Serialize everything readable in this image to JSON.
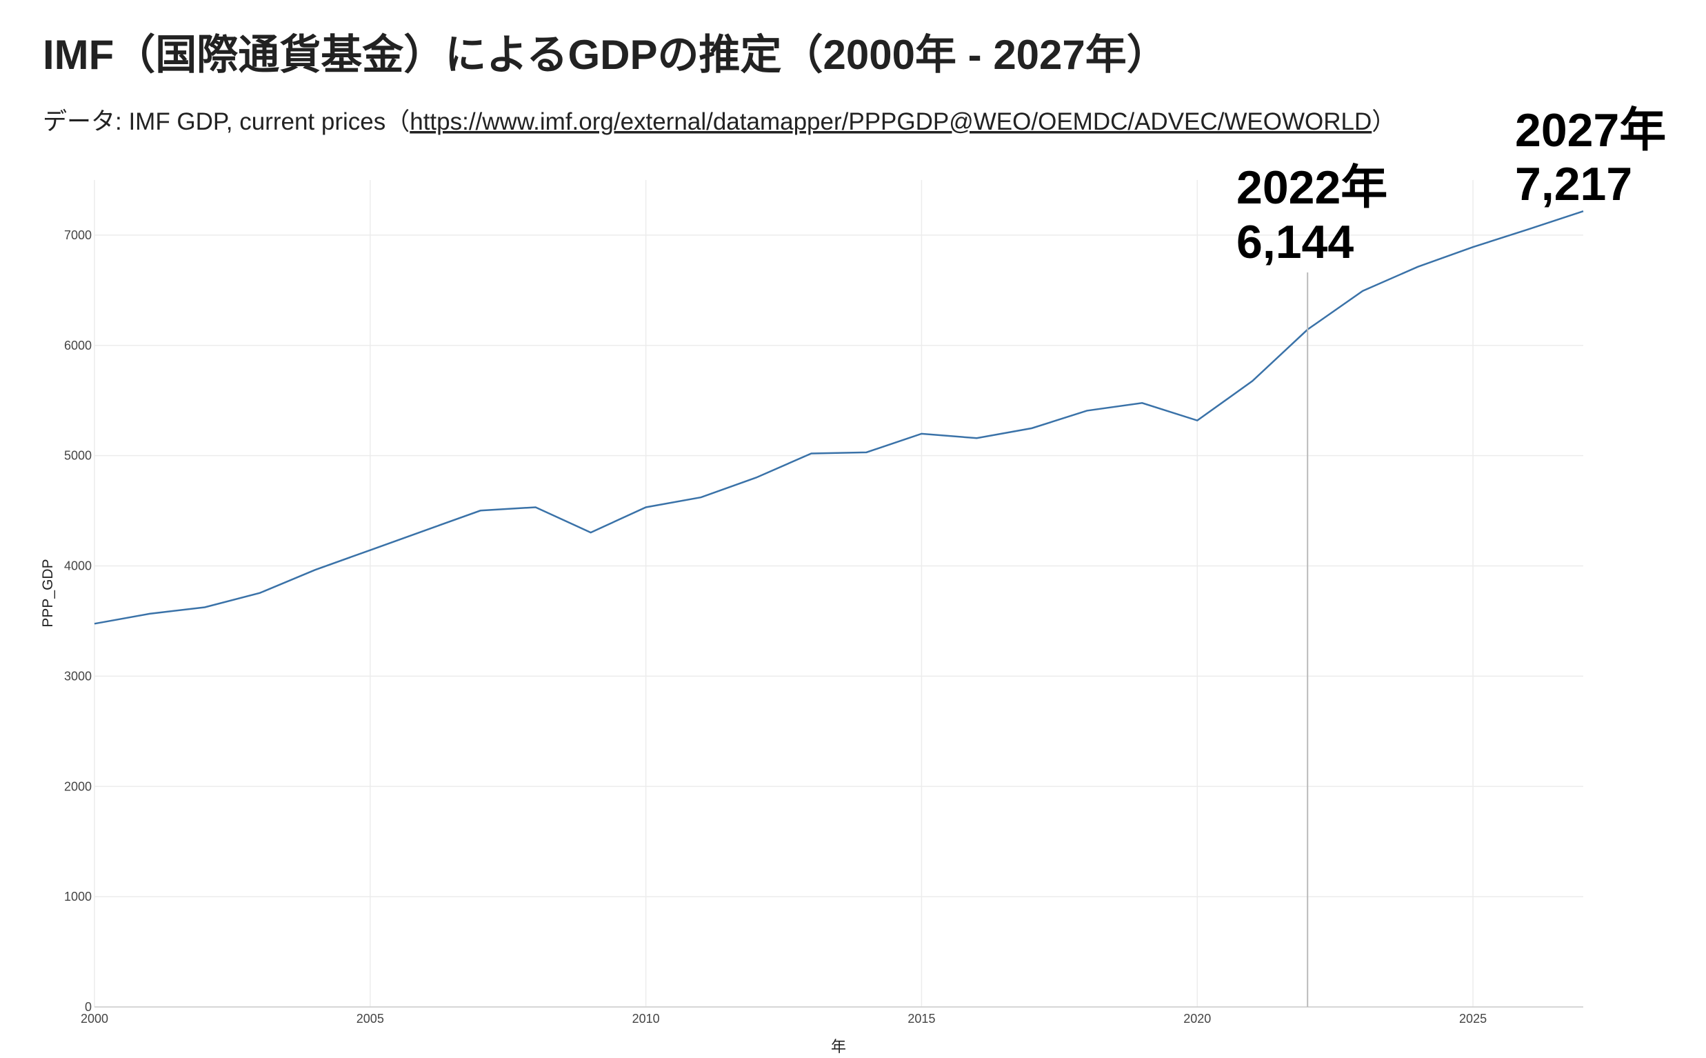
{
  "chart_data": {
    "type": "line",
    "title": "IMF（国際通貨基金）によるGDPの推定（2000年 - 2027年）",
    "subtitle": {
      "text": "データ: IMF GDP, current prices（",
      "link": "https://www.imf.org/external/datamapper/PPPGDP@WEO/OEMDC/ADVEC/WEOWORLD",
      "end": "）"
    },
    "x_label": "年",
    "y_label": "PPP_GDP",
    "x": [
      2000,
      2001,
      2002,
      2003,
      2004,
      2005,
      2006,
      2007,
      2008,
      2009,
      2010,
      2011,
      2012,
      2013,
      2014,
      2015,
      2016,
      2017,
      2018,
      2019,
      2020,
      2021,
      2022,
      2023,
      2024,
      2025,
      2026,
      2027
    ],
    "series": [
      {
        "color": "#3a72a8",
        "values": [
          3476,
          3566,
          3625,
          3755,
          3964,
          4143,
          4323,
          4502,
          4532,
          4303,
          4532,
          4622,
          4801,
          5020,
          5030,
          5199,
          5159,
          5249,
          5408,
          5478,
          5319,
          5677,
          6144,
          6494,
          6713,
          6892,
          7052,
          7217
        ]
      }
    ],
    "xlim": [
      2000,
      2027
    ],
    "xticks": [
      2000,
      2005,
      2010,
      2015,
      2020,
      2025
    ],
    "ylim": [
      0,
      7500
    ],
    "yticks": [
      0,
      1000,
      2000,
      3000,
      4000,
      5000,
      6000,
      7000
    ],
    "grid": true,
    "annotations": [
      {
        "x": 2022,
        "x_label": "2022年",
        "y": 6144,
        "y_label": "6,144",
        "rule": true
      },
      {
        "x": 2027,
        "x_label": "2027年",
        "y": 7217,
        "y_label": "7,217",
        "rule": false
      }
    ]
  }
}
